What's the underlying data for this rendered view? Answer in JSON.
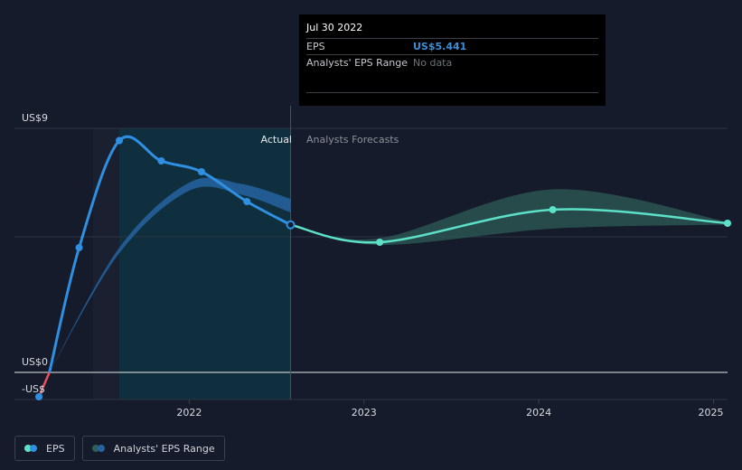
{
  "tooltip": {
    "date": "Jul 30 2022",
    "eps_label": "EPS",
    "eps_value": "US$5.441",
    "range_label": "Analysts' EPS Range",
    "range_value": "No data"
  },
  "legend": {
    "eps": "EPS",
    "range": "Analysts' EPS Range"
  },
  "colors": {
    "background": "#151b2a",
    "actual_eps": "#2f8fe0",
    "forecast_eps": "#5de0c8",
    "negative_eps": "#e8505b",
    "actual_band": "#2563a0",
    "forecast_band": "#2f5e5a"
  },
  "chart_data": {
    "type": "line",
    "y_labels": [
      "US$9",
      "US$0",
      "-US$"
    ],
    "x_ticks": [
      "2022",
      "2023",
      "2024",
      "2025"
    ],
    "section_labels": {
      "actual": "Actual",
      "forecast": "Analysts Forecasts"
    },
    "ylim": [
      -1.0,
      9.0
    ],
    "xlim": [
      2021.0,
      2025.08
    ],
    "grid": "horizontal",
    "highlight": {
      "from": 2021.6,
      "to": 2022.58
    },
    "series": [
      {
        "kind": "actual",
        "x": [
          2021.14,
          2021.37,
          2021.6,
          2021.84,
          2022.07,
          2022.33,
          2022.58
        ],
        "y": [
          -0.9,
          4.6,
          8.55,
          7.8,
          7.4,
          6.3,
          5.441
        ]
      },
      {
        "kind": "forecast",
        "x": [
          2022.58,
          2023.09,
          2024.08,
          2025.08
        ],
        "y": [
          5.441,
          4.8,
          6.0,
          5.5
        ]
      }
    ],
    "analyst_band_actual": {
      "x": [
        2021.2,
        2021.6,
        2022.0,
        2022.3,
        2022.58
      ],
      "upper": [
        0.0,
        4.6,
        7.0,
        6.95,
        6.4
      ],
      "lower": [
        0.0,
        4.4,
        6.7,
        6.55,
        5.9
      ]
    },
    "forecast_band": {
      "x": [
        2022.58,
        2023.09,
        2024.08,
        2025.08
      ],
      "upper": [
        5.441,
        4.95,
        6.75,
        5.55
      ],
      "lower": [
        5.441,
        4.7,
        5.3,
        5.45
      ]
    }
  }
}
